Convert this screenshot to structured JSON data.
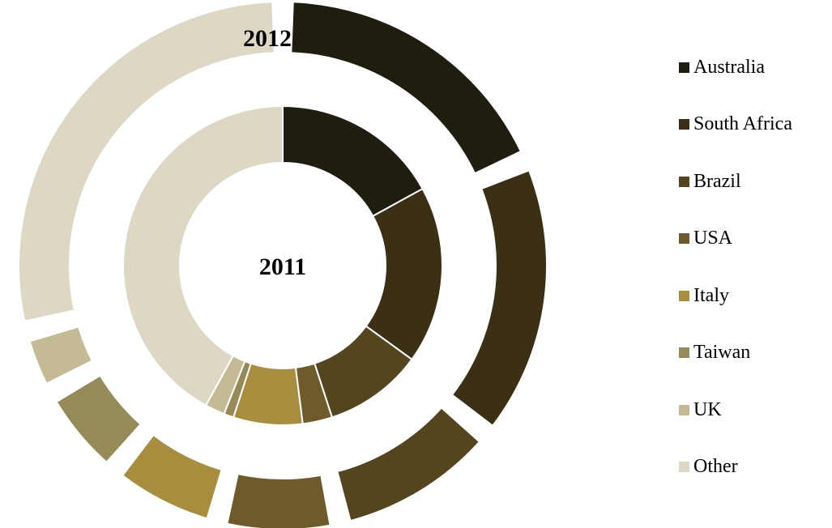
{
  "chart_data": {
    "type": "pie",
    "variant": "doughnut",
    "categories": [
      "Australia",
      "South Africa",
      "Brazil",
      "USA",
      "Italy",
      "Taiwan",
      "UK",
      "Other"
    ],
    "colors": [
      "#1f1c10",
      "#3b2f15",
      "#54451f",
      "#6e5a2a",
      "#a88d3e",
      "#968b58",
      "#c4bb95",
      "#ddd8c3"
    ],
    "series": [
      {
        "name": "2011",
        "values": [
          17.0,
          18.0,
          10.0,
          3.0,
          7.0,
          1.0,
          2.0,
          42.0
        ]
      },
      {
        "name": "2012",
        "values": [
          18.5,
          17.5,
          10.5,
          7.5,
          7.0,
          6.0,
          4.0,
          29.0
        ]
      }
    ],
    "ring_labels": [
      "2011",
      "2012"
    ],
    "legend_position": "right",
    "title": "",
    "unit": "%"
  }
}
